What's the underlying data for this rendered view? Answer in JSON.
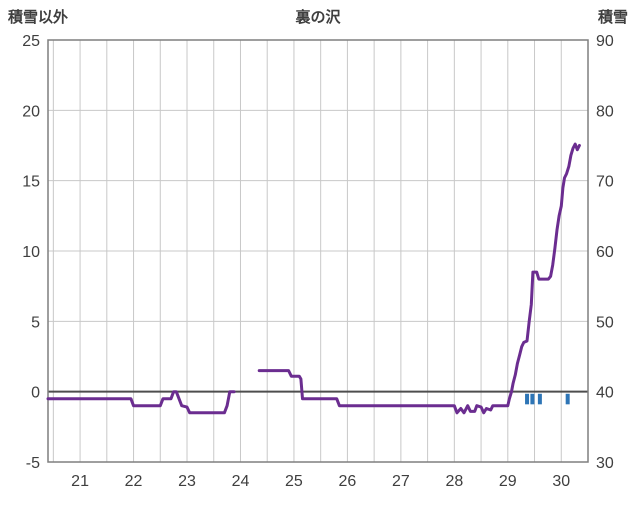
{
  "header": {
    "left_axis_title": "積雪以外",
    "chart_title": "裏の沢",
    "right_axis_title": "積雪"
  },
  "chart_data": {
    "type": "line",
    "title": "裏の沢",
    "left_axis": {
      "label": "積雪以外",
      "min": -5,
      "max": 25,
      "ticks": [
        25,
        20,
        15,
        10,
        5,
        0,
        -5
      ]
    },
    "right_axis": {
      "label": "積雪",
      "min": 30,
      "max": 90,
      "ticks": [
        90,
        80,
        70,
        60,
        50,
        40,
        30
      ]
    },
    "x_axis": {
      "min": 20.4,
      "max": 30.5,
      "tick_labels": [
        21,
        22,
        23,
        24,
        25,
        26,
        27,
        28,
        29,
        30
      ],
      "gridline_step": 0.5
    },
    "grid": true,
    "zero_line": 0,
    "colors": {
      "line": "#6b2d90",
      "bars": "#2e75b6",
      "grid": "#c8c8c8",
      "border": "#7f7f7f",
      "zero": "#4d4d4d"
    },
    "series": [
      {
        "name": "snow-depth-line",
        "color": "#6b2d90",
        "segments": [
          [
            [
              20.4,
              -0.5
            ],
            [
              21.95,
              -0.5
            ],
            [
              22.0,
              -1
            ],
            [
              22.5,
              -1
            ],
            [
              22.55,
              -0.5
            ],
            [
              22.7,
              -0.5
            ],
            [
              22.75,
              0
            ],
            [
              22.8,
              0
            ],
            [
              22.85,
              -0.5
            ],
            [
              22.9,
              -1
            ],
            [
              23.0,
              -1.1
            ],
            [
              23.05,
              -1.5
            ],
            [
              23.7,
              -1.5
            ],
            [
              23.75,
              -1
            ],
            [
              23.8,
              0
            ],
            [
              23.88,
              0
            ]
          ],
          [
            [
              24.35,
              1.5
            ],
            [
              24.9,
              1.5
            ],
            [
              24.95,
              1.1
            ],
            [
              25.1,
              1.1
            ],
            [
              25.13,
              0.9
            ],
            [
              25.16,
              -0.5
            ],
            [
              25.8,
              -0.5
            ],
            [
              25.85,
              -1
            ],
            [
              28.0,
              -1
            ],
            [
              28.05,
              -1.5
            ],
            [
              28.12,
              -1.2
            ],
            [
              28.18,
              -1.5
            ],
            [
              28.25,
              -1
            ],
            [
              28.3,
              -1.4
            ],
            [
              28.38,
              -1.4
            ],
            [
              28.42,
              -1
            ],
            [
              28.5,
              -1.1
            ],
            [
              28.55,
              -1.5
            ],
            [
              28.6,
              -1.2
            ],
            [
              28.68,
              -1.3
            ],
            [
              28.72,
              -1
            ],
            [
              29.0,
              -1
            ],
            [
              29.03,
              -0.5
            ],
            [
              29.07,
              0
            ],
            [
              29.1,
              0.6
            ],
            [
              29.14,
              1.2
            ],
            [
              29.18,
              2
            ],
            [
              29.22,
              2.6
            ],
            [
              29.26,
              3.2
            ],
            [
              29.3,
              3.5
            ],
            [
              29.36,
              3.6
            ],
            [
              29.4,
              5
            ],
            [
              29.44,
              6.2
            ],
            [
              29.47,
              8.5
            ],
            [
              29.54,
              8.5
            ],
            [
              29.58,
              8
            ],
            [
              29.76,
              8
            ],
            [
              29.8,
              8.2
            ],
            [
              29.84,
              9
            ],
            [
              29.88,
              10.2
            ],
            [
              29.92,
              11.5
            ],
            [
              29.96,
              12.5
            ],
            [
              30.0,
              13.2
            ],
            [
              30.03,
              14.5
            ],
            [
              30.06,
              15.2
            ],
            [
              30.1,
              15.5
            ],
            [
              30.14,
              16
            ],
            [
              30.18,
              16.8
            ],
            [
              30.22,
              17.3
            ],
            [
              30.26,
              17.6
            ],
            [
              30.3,
              17.2
            ],
            [
              30.34,
              17.5
            ]
          ]
        ]
      }
    ],
    "bars": {
      "name": "snowfall-ticks",
      "color": "#2e75b6",
      "x": [
        29.36,
        29.46,
        29.6,
        30.12
      ],
      "y_top": -0.15,
      "y_bottom": -0.9
    }
  }
}
